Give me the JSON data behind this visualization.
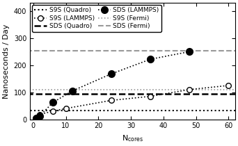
{
  "title": "",
  "xlabel": "N$_{\\mathregular{cores}}$",
  "ylabel": "Nanoseconds / Day",
  "xlim": [
    -1,
    62
  ],
  "ylim": [
    0,
    430
  ],
  "yticks": [
    0,
    100,
    200,
    300,
    400
  ],
  "xticks": [
    0,
    10,
    20,
    30,
    40,
    50,
    60
  ],
  "s9s_quadro_y": 33,
  "sds_quadro_y": 93,
  "s9s_fermi_y": 110,
  "sds_fermi_y": 252,
  "s9s_lammps_x": [
    1,
    2,
    6,
    10,
    24,
    36,
    48,
    60
  ],
  "s9s_lammps_y": [
    5,
    18,
    30,
    40,
    70,
    85,
    110,
    125
  ],
  "sds_lammps_x": [
    1,
    2,
    6,
    12,
    24,
    36,
    48
  ],
  "sds_lammps_y": [
    5,
    12,
    62,
    105,
    168,
    222,
    250
  ],
  "color_black": "#000000",
  "color_gray": "#999999",
  "legend_fontsize": 6.5,
  "tick_fontsize": 7,
  "label_fontsize": 8
}
